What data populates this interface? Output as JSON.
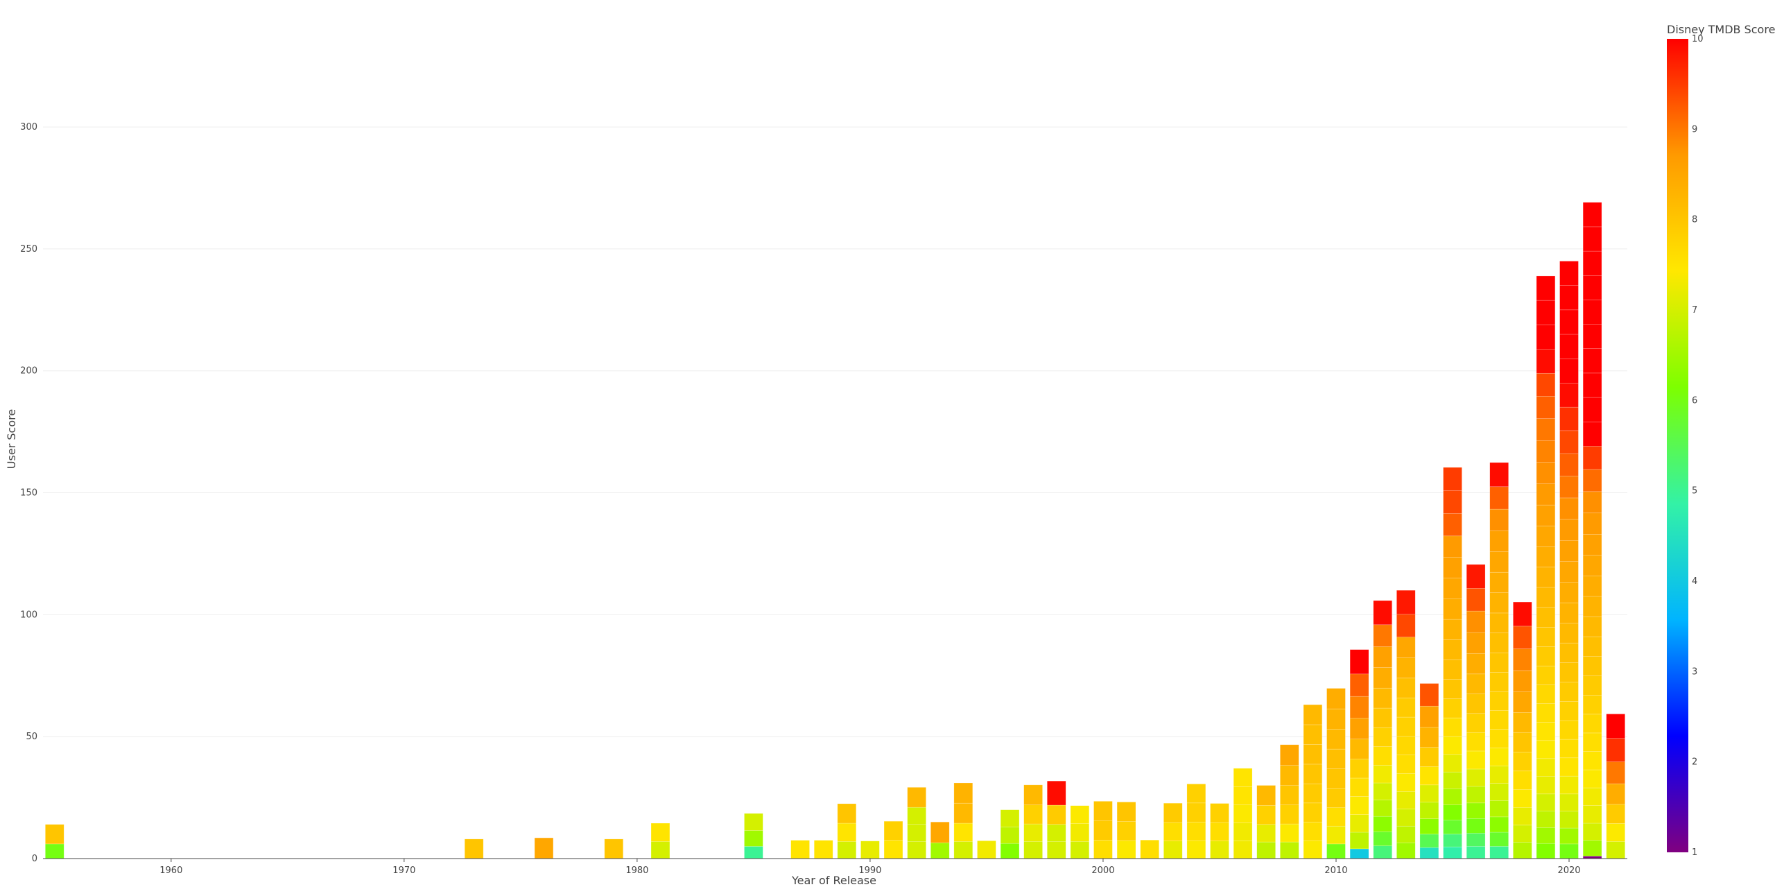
{
  "chart_data": {
    "type": "bar",
    "barmode": "stack",
    "xlabel": "Year of Release",
    "ylabel": "User Score",
    "xlim": [
      1954.5,
      2022.5
    ],
    "ylim": [
      0,
      337
    ],
    "x_ticks": [
      1960,
      1970,
      1980,
      1990,
      2000,
      2010,
      2020
    ],
    "y_ticks": [
      0,
      50,
      100,
      150,
      200,
      250,
      300
    ],
    "grid": "horizontal",
    "colorbar": {
      "title": "Disney TMDB Score",
      "range": [
        1,
        10
      ],
      "ticks": [
        1,
        2,
        3,
        4,
        5,
        6,
        7,
        8,
        9,
        10
      ],
      "colorscale": [
        "#800080",
        "#0000ff",
        "#00b4ff",
        "#33f2a6",
        "#7dff00",
        "#ffe800",
        "#ff9a00",
        "#ff0000"
      ]
    },
    "stacks": [
      {
        "year": 1955,
        "segments": [
          6,
          8
        ]
      },
      {
        "year": 1973,
        "segments": [
          8
        ]
      },
      {
        "year": 1976,
        "segments": [
          8.5
        ]
      },
      {
        "year": 1979,
        "segments": [
          8
        ]
      },
      {
        "year": 1981,
        "segments": [
          7,
          7.5
        ]
      },
      {
        "year": 1985,
        "segments": [
          5,
          6.5,
          7
        ]
      },
      {
        "year": 1987,
        "segments": [
          7.5
        ]
      },
      {
        "year": 1988,
        "segments": [
          7.5
        ]
      },
      {
        "year": 1989,
        "segments": [
          7,
          7.5,
          8
        ]
      },
      {
        "year": 1990,
        "segments": [
          7.2
        ]
      },
      {
        "year": 1991,
        "segments": [
          7.5,
          7.8
        ]
      },
      {
        "year": 1992,
        "segments": [
          7,
          7,
          7,
          8.2
        ]
      },
      {
        "year": 1993,
        "segments": [
          6.5,
          8.5
        ]
      },
      {
        "year": 1994,
        "segments": [
          7,
          7.5,
          8.2,
          8.3
        ]
      },
      {
        "year": 1995,
        "segments": [
          7.3
        ]
      },
      {
        "year": 1996,
        "segments": [
          6.2,
          6.8,
          7
        ]
      },
      {
        "year": 1997,
        "segments": [
          7,
          7.2,
          7.8,
          8.2
        ]
      },
      {
        "year": 1998,
        "segments": [
          7,
          7,
          7.9,
          9.9
        ]
      },
      {
        "year": 1999,
        "segments": [
          7,
          7.3,
          7.4
        ]
      },
      {
        "year": 2000,
        "segments": [
          7.6,
          7.9,
          8
        ]
      },
      {
        "year": 2001,
        "segments": [
          7.4,
          7.8,
          8
        ]
      },
      {
        "year": 2002,
        "segments": [
          7.6
        ]
      },
      {
        "year": 2003,
        "segments": [
          7.2,
          7.6,
          7.9
        ]
      },
      {
        "year": 2004,
        "segments": [
          7.4,
          7.6,
          7.8,
          7.8
        ]
      },
      {
        "year": 2005,
        "segments": [
          7.2,
          7.6,
          7.8
        ]
      },
      {
        "year": 2006,
        "segments": [
          7.3,
          7.3,
          7.4,
          7.5,
          7.5
        ]
      },
      {
        "year": 2007,
        "segments": [
          6.8,
          7.2,
          7.8,
          8.2
        ]
      },
      {
        "year": 2008,
        "segments": [
          6.8,
          7.4,
          7.8,
          8,
          8.2,
          8.5
        ]
      },
      {
        "year": 2009,
        "segments": [
          7.4,
          7.6,
          7.8,
          7.9,
          8,
          8.1,
          8.1,
          8.2
        ]
      },
      {
        "year": 2010,
        "segments": [
          6,
          7.3,
          7.6,
          7.9,
          8,
          8.1,
          8.2,
          8.3,
          8.4
        ]
      },
      {
        "year": 2011,
        "segments": [
          4,
          6.8,
          7.2,
          7.4,
          7.6,
          7.8,
          8.2,
          8.6,
          8.9,
          9.2,
          10
        ]
      },
      {
        "year": 2012,
        "segments": [
          5.2,
          5.8,
          6.3,
          6.7,
          7,
          7.3,
          7.6,
          7.8,
          8,
          8.2,
          8.4,
          8.6,
          9,
          9.9
        ]
      },
      {
        "year": 2013,
        "segments": [
          6.5,
          6.8,
          7,
          7.2,
          7.4,
          7.6,
          7.7,
          7.8,
          7.9,
          8.1,
          8.3,
          8.5,
          9.4,
          9.8
        ]
      },
      {
        "year": 2014,
        "segments": [
          4.5,
          5.5,
          6.3,
          6.8,
          7.1,
          7.5,
          7.9,
          8.3,
          8.6,
          9.3
        ]
      },
      {
        "year": 2015,
        "segments": [
          4.8,
          5.2,
          5.8,
          6.2,
          6.6,
          6.9,
          7.2,
          7.4,
          7.6,
          7.8,
          8,
          8.1,
          8.2,
          8.3,
          8.4,
          8.5,
          8.6,
          8.7,
          9.2,
          9.4,
          9.5
        ]
      },
      {
        "year": 2016,
        "segments": [
          5,
          5.4,
          6,
          6.4,
          6.8,
          7.1,
          7.4,
          7.6,
          7.8,
          8,
          8.2,
          8.4,
          8.6,
          8.8,
          9.3,
          9.8
        ]
      },
      {
        "year": 2017,
        "segments": [
          5,
          5.8,
          6.3,
          6.7,
          7,
          7.2,
          7.4,
          7.6,
          7.7,
          7.8,
          7.9,
          8,
          8.1,
          8.2,
          8.3,
          8.4,
          8.5,
          8.6,
          8.8,
          9.2,
          9.9
        ]
      },
      {
        "year": 2018,
        "segments": [
          6.7,
          7,
          7.2,
          7.4,
          7.6,
          7.8,
          8,
          8.2,
          8.5,
          8.7,
          8.9,
          9.3,
          9.9
        ]
      },
      {
        "year": 2019,
        "segments": [
          6.2,
          6.5,
          6.8,
          7,
          7.2,
          7.3,
          7.4,
          7.5,
          7.6,
          7.7,
          7.8,
          7.9,
          8,
          8.1,
          8.2,
          8.3,
          8.4,
          8.5,
          8.6,
          8.7,
          8.8,
          8.9,
          9,
          9.2,
          9.4,
          9.9,
          10,
          10,
          10
        ]
      },
      {
        "year": 2020,
        "segments": [
          6,
          6.5,
          6.9,
          7.1,
          7.3,
          7.5,
          7.6,
          7.7,
          7.8,
          7.9,
          8,
          8.1,
          8.2,
          8.3,
          8.4,
          8.5,
          8.6,
          8.7,
          8.8,
          9,
          9.2,
          9.4,
          9.6,
          9.9,
          10,
          10,
          10,
          10,
          10
        ]
      },
      {
        "year": 2021,
        "segments": [
          1,
          6.5,
          7,
          7.2,
          7.3,
          7.4,
          7.5,
          7.6,
          7.7,
          7.8,
          7.9,
          8,
          8.1,
          8.2,
          8.3,
          8.4,
          8.5,
          8.6,
          8.7,
          8.8,
          9.1,
          9.5,
          10,
          10,
          10,
          10,
          10,
          10,
          10,
          10,
          10,
          10
        ]
      },
      {
        "year": 2022,
        "segments": [
          7,
          7.4,
          7.9,
          8.4,
          9,
          9.6,
          10
        ]
      }
    ]
  }
}
